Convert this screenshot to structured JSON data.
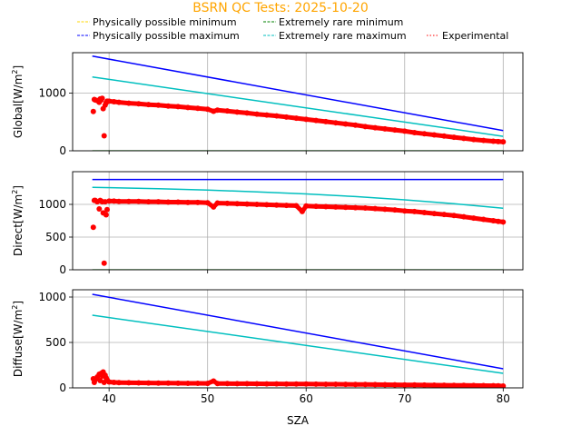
{
  "title": "BSRN QC Tests: 2025-10-20",
  "title_color": "#ffa500",
  "legend": {
    "placement": "top",
    "entries": [
      {
        "label": "Physically possible minimum",
        "color": "#ffd700",
        "style": "dashed"
      },
      {
        "label": "Extremely rare minimum",
        "color": "#008000",
        "style": "dashed"
      },
      {
        "label": "Physically possible maximum",
        "color": "#0000ff",
        "style": "dashed"
      },
      {
        "label": "Extremely rare maximum",
        "color": "#00bfbf",
        "style": "dashed"
      },
      {
        "label": "Experimental",
        "color": "#ff0000",
        "style": "dotted"
      }
    ]
  },
  "xlabel": "SZA",
  "chart_data": [
    {
      "type": "scatter",
      "ylabel": "Global[W/m",
      "ylabel_sup": "2",
      "ylabel_end": "]",
      "xlim": [
        36.3,
        82
      ],
      "ylim": [
        0,
        1700
      ],
      "xticks": [
        "40",
        "50",
        "60",
        "70",
        "80"
      ],
      "yticks": [
        "0",
        "1000"
      ],
      "ytick_values": [
        0,
        1000
      ],
      "grid": true,
      "series": [
        {
          "name": "Physically possible minimum",
          "kind": "line",
          "color": "#ffd700",
          "x": [
            38.3,
            80
          ],
          "y": [
            -4,
            -4
          ]
        },
        {
          "name": "Extremely rare minimum",
          "kind": "line",
          "color": "#008000",
          "x": [
            38.3,
            80
          ],
          "y": [
            -2,
            -2
          ]
        },
        {
          "name": "Physically possible maximum",
          "kind": "line",
          "color": "#0000ff",
          "x": [
            38.3,
            80
          ],
          "y": [
            1640,
            350
          ]
        },
        {
          "name": "Extremely rare maximum",
          "kind": "line",
          "color": "#00bfbf",
          "x": [
            38.3,
            80
          ],
          "y": [
            1280,
            250
          ]
        },
        {
          "name": "Experimental",
          "kind": "points",
          "color": "#ff0000",
          "x": [
            38.4,
            38.5,
            38.6,
            38.8,
            39.0,
            39.1,
            39.2,
            39.3,
            39.4,
            39.5,
            39.6,
            39.7,
            39.8,
            40.0,
            40.5,
            41,
            42,
            43,
            44,
            45,
            46,
            47,
            48,
            49,
            50,
            50.6,
            51,
            52,
            53,
            54,
            55,
            56,
            57,
            58,
            59,
            60,
            61,
            62,
            63,
            64,
            65,
            66,
            67,
            68,
            69,
            70,
            71,
            72,
            73,
            74,
            75,
            76,
            77,
            78,
            79,
            79.5,
            80
          ],
          "y": [
            680,
            890,
            880,
            870,
            840,
            900,
            880,
            910,
            730,
            260,
            790,
            830,
            860,
            860,
            850,
            840,
            825,
            815,
            800,
            790,
            775,
            765,
            750,
            735,
            720,
            685,
            705,
            690,
            670,
            655,
            635,
            620,
            605,
            585,
            565,
            545,
            525,
            505,
            485,
            465,
            445,
            420,
            400,
            380,
            360,
            340,
            315,
            295,
            275,
            255,
            235,
            215,
            195,
            180,
            165,
            160,
            155
          ]
        }
      ]
    },
    {
      "type": "scatter",
      "ylabel": "Direct[W/m",
      "ylabel_sup": "2",
      "ylabel_end": "]",
      "xlim": [
        36.3,
        82
      ],
      "ylim": [
        0,
        1500
      ],
      "xticks": [
        "40",
        "50",
        "60",
        "70",
        "80"
      ],
      "yticks": [
        "0",
        "500",
        "1000"
      ],
      "ytick_values": [
        0,
        500,
        1000
      ],
      "grid": true,
      "series": [
        {
          "name": "Physically possible minimum",
          "kind": "line",
          "color": "#ffd700",
          "x": [
            38.3,
            80
          ],
          "y": [
            -4,
            -4
          ]
        },
        {
          "name": "Extremely rare minimum",
          "kind": "line",
          "color": "#008000",
          "x": [
            38.3,
            80
          ],
          "y": [
            -2,
            -2
          ]
        },
        {
          "name": "Physically possible maximum",
          "kind": "line",
          "color": "#0000ff",
          "x": [
            38.3,
            80
          ],
          "y": [
            1380,
            1380
          ]
        },
        {
          "name": "Extremely rare maximum",
          "kind": "line",
          "color": "#00bfbf",
          "x": [
            38.3,
            45,
            50,
            55,
            60,
            65,
            70,
            75,
            80
          ],
          "y": [
            1260,
            1240,
            1220,
            1190,
            1160,
            1120,
            1070,
            1010,
            940
          ]
        },
        {
          "name": "Experimental",
          "kind": "points",
          "color": "#ff0000",
          "x": [
            38.4,
            38.5,
            38.6,
            38.8,
            39.0,
            39.1,
            39.2,
            39.3,
            39.4,
            39.5,
            39.6,
            39.7,
            39.8,
            40.0,
            40.5,
            41,
            42,
            43,
            44,
            45,
            46,
            47,
            48,
            49,
            50,
            50.6,
            51,
            52,
            53,
            54,
            55,
            56,
            57,
            58,
            59,
            59.6,
            60,
            61,
            62,
            63,
            64,
            65,
            66,
            67,
            68,
            69,
            70,
            71,
            72,
            73,
            74,
            75,
            76,
            77,
            78,
            79,
            79.5,
            80
          ],
          "y": [
            650,
            1060,
            1060,
            1040,
            930,
            1060,
            1050,
            1040,
            870,
            100,
            1040,
            840,
            920,
            1050,
            1050,
            1045,
            1045,
            1045,
            1040,
            1040,
            1035,
            1035,
            1030,
            1030,
            1025,
            960,
            1020,
            1015,
            1010,
            1005,
            1000,
            995,
            990,
            985,
            980,
            890,
            975,
            970,
            965,
            960,
            955,
            950,
            945,
            935,
            925,
            915,
            900,
            890,
            875,
            860,
            845,
            830,
            810,
            790,
            770,
            750,
            740,
            730
          ]
        }
      ]
    },
    {
      "type": "scatter",
      "ylabel": "Diffuse[W/m",
      "ylabel_sup": "2",
      "ylabel_end": "]",
      "xlim": [
        36.3,
        82
      ],
      "ylim": [
        0,
        1080
      ],
      "xticks": [
        "40",
        "50",
        "60",
        "70",
        "80"
      ],
      "yticks": [
        "0",
        "500",
        "1000"
      ],
      "ytick_values": [
        0,
        500,
        1000
      ],
      "grid": true,
      "series": [
        {
          "name": "Physically possible minimum",
          "kind": "line",
          "color": "#ffd700",
          "x": [
            38.3,
            80
          ],
          "y": [
            -4,
            -4
          ]
        },
        {
          "name": "Extremely rare minimum",
          "kind": "line",
          "color": "#008000",
          "x": [
            38.3,
            80
          ],
          "y": [
            -2,
            -2
          ]
        },
        {
          "name": "Physically possible maximum",
          "kind": "line",
          "color": "#0000ff",
          "x": [
            38.3,
            80
          ],
          "y": [
            1030,
            210
          ]
        },
        {
          "name": "Extremely rare maximum",
          "kind": "line",
          "color": "#00bfbf",
          "x": [
            38.3,
            80
          ],
          "y": [
            800,
            160
          ]
        },
        {
          "name": "Experimental",
          "kind": "points",
          "color": "#ff0000",
          "x": [
            38.4,
            38.5,
            38.6,
            38.8,
            39.0,
            39.1,
            39.2,
            39.3,
            39.4,
            39.5,
            39.6,
            39.7,
            39.8,
            40.0,
            40.5,
            41,
            42,
            43,
            44,
            45,
            46,
            47,
            48,
            49,
            50,
            50.6,
            51,
            52,
            53,
            54,
            55,
            56,
            57,
            58,
            59,
            60,
            61,
            62,
            63,
            64,
            65,
            66,
            67,
            68,
            69,
            70,
            71,
            72,
            73,
            74,
            75,
            76,
            77,
            78,
            79,
            79.5,
            80
          ],
          "y": [
            100,
            60,
            90,
            120,
            150,
            80,
            160,
            130,
            175,
            60,
            140,
            110,
            90,
            65,
            60,
            58,
            56,
            55,
            54,
            53,
            52,
            51,
            50,
            50,
            49,
            75,
            48,
            47,
            46,
            46,
            45,
            44,
            44,
            43,
            42,
            42,
            41,
            40,
            40,
            39,
            38,
            37,
            36,
            35,
            34,
            33,
            32,
            31,
            30,
            29,
            28,
            27,
            26,
            25,
            24,
            22,
            20
          ]
        }
      ]
    }
  ]
}
